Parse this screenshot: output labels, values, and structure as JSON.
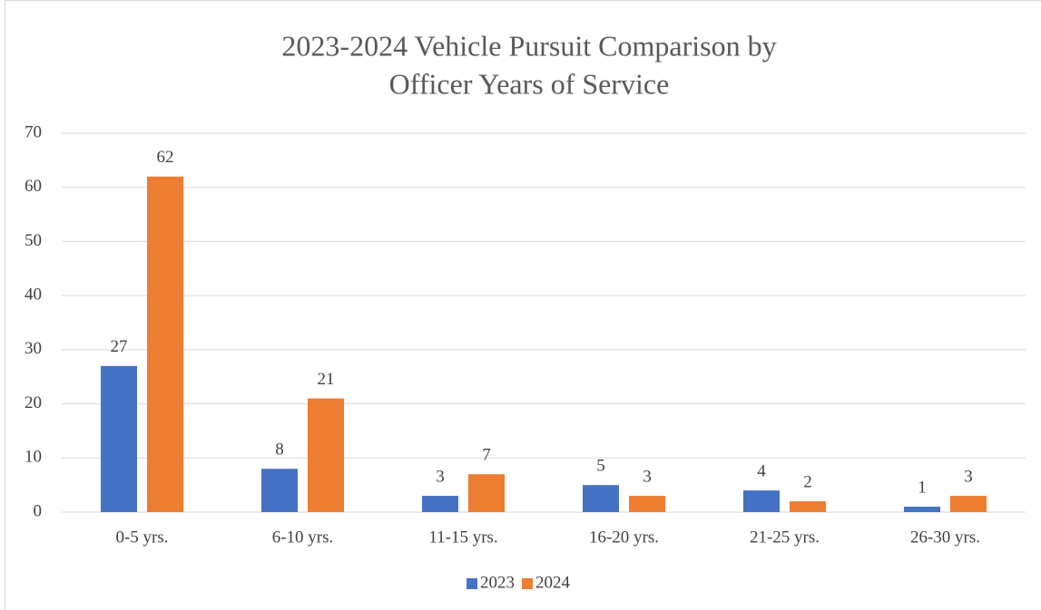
{
  "chart_data": {
    "type": "bar",
    "title": [
      "2023-2024 Vehicle Pursuit Comparison by",
      "Officer Years of Service"
    ],
    "categories": [
      "0-5 yrs.",
      "6-10 yrs.",
      "11-15 yrs.",
      "16-20 yrs.",
      "21-25 yrs.",
      "26-30 yrs."
    ],
    "series": [
      {
        "name": "2023",
        "color": "#4472c4",
        "values": [
          27,
          8,
          3,
          5,
          4,
          1
        ]
      },
      {
        "name": "2024",
        "color": "#ed7d31",
        "values": [
          62,
          21,
          7,
          3,
          2,
          3
        ]
      }
    ],
    "ylim": [
      0,
      70
    ],
    "yticks": [
      0,
      10,
      20,
      30,
      40,
      50,
      60,
      70
    ],
    "grid": true,
    "legend": "bottom"
  }
}
